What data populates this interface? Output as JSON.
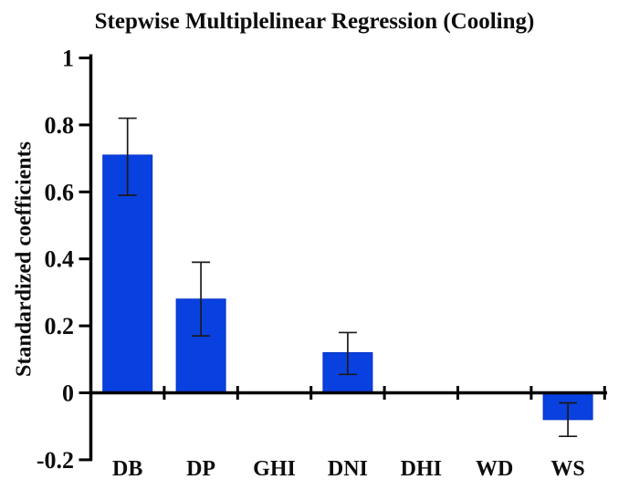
{
  "colors": {
    "bar_fill": "#0941e0",
    "bar_edge": "#0733c4",
    "axis": "#000000",
    "error_bar": "#1a1a1a",
    "background": "#ffffff",
    "text": "#0d0d0d"
  },
  "chart_data": {
    "type": "bar",
    "title": "Stepwise Multiplelinear Regression (Cooling)",
    "xlabel": "",
    "ylabel": "Standardized  coefficients",
    "categories": [
      "DB",
      "DP",
      "GHI",
      "DNI",
      "DHI",
      "WD",
      "WS"
    ],
    "values": [
      0.71,
      0.28,
      0,
      0.12,
      0,
      0,
      -0.08
    ],
    "error_low": [
      0.59,
      0.17,
      null,
      0.055,
      null,
      null,
      -0.13
    ],
    "error_high": [
      0.82,
      0.39,
      null,
      0.18,
      null,
      null,
      -0.03
    ],
    "ylim": [
      -0.2,
      1.0
    ],
    "ytick_values": [
      1,
      0.8,
      0.6,
      0.4,
      0.2,
      0,
      -0.2
    ],
    "ytick_labels": [
      "1",
      "0.8",
      "0.6",
      "0.4",
      "0.2",
      "0",
      "-0.2"
    ],
    "grid": false,
    "legend": false
  }
}
